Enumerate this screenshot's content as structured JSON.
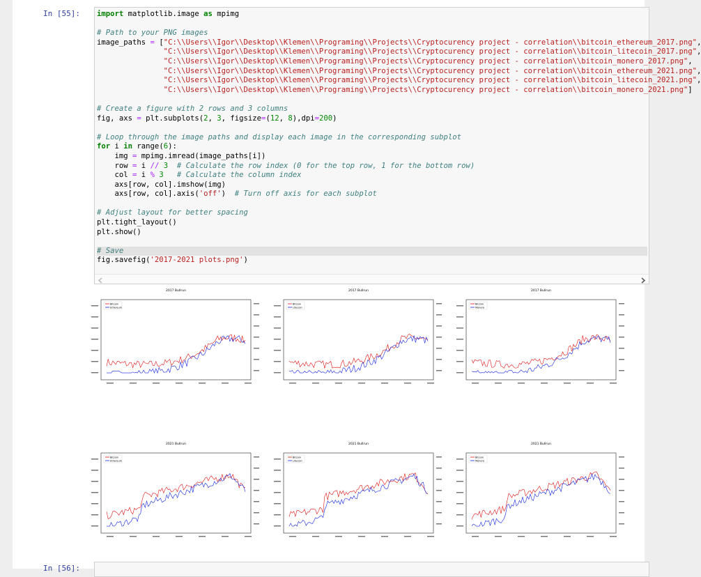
{
  "cell": {
    "prompt": "In [55]:",
    "blocks": [
      [
        "import matplotlib.image as mpimg"
      ],
      [
        "# Path to your PNG images",
        "image_paths = [\"C:\\\\Users\\\\Igor\\\\Desktop\\\\Klemen\\\\Programing\\\\Projects\\\\Cryptocurency project - correlation\\\\bitcoin_ethereum_2017.png\",",
        "               \"C:\\\\Users\\\\Igor\\\\Desktop\\\\Klemen\\\\Programing\\\\Projects\\\\Cryptocurency project - correlation\\\\bitcoin_litecoin_2017.png\",",
        "               \"C:\\\\Users\\\\Igor\\\\Desktop\\\\Klemen\\\\Programing\\\\Projects\\\\Cryptocurency project - correlation\\\\bitcoin_monero_2017.png\",",
        "               \"C:\\\\Users\\\\Igor\\\\Desktop\\\\Klemen\\\\Programing\\\\Projects\\\\Cryptocurency project - correlation\\\\bitcoin_ethereum_2021.png\",",
        "               \"C:\\\\Users\\\\Igor\\\\Desktop\\\\Klemen\\\\Programing\\\\Projects\\\\Cryptocurency project - correlation\\\\bitcoin_litecoin_2021.png\",",
        "               \"C:\\\\Users\\\\Igor\\\\Desktop\\\\Klemen\\\\Programing\\\\Projects\\\\Cryptocurency project - correlation\\\\bitcoin_monero_2021.png\"]"
      ],
      [
        "# Create a figure with 2 rows and 3 columns",
        "fig, axs = plt.subplots(2, 3, figsize=(12, 8),dpi=200)"
      ],
      [
        "# Loop through the image paths and display each image in the corresponding subplot",
        "for i in range(6):",
        "    img = mpimg.imread(image_paths[i])",
        "    row = i // 3  # Calculate the row index (0 for the top row, 1 for the bottom row)",
        "    col = i % 3   # Calculate the column index",
        "    axs[row, col].imshow(img)",
        "    axs[row, col].axis('off')  # Turn off axis for each subplot"
      ],
      [
        "# Adjust layout for better spacing",
        "plt.tight_layout()",
        "plt.show()"
      ],
      [
        "# Save",
        "fig.savefig('2017-2021 plots.png')"
      ]
    ]
  },
  "output": {
    "plots": [
      {
        "title": "2017 Bullrun",
        "legend": [
          "Bitcoin",
          "Ethereum"
        ]
      },
      {
        "title": "2017 Bullrun",
        "legend": [
          "Bitcoin",
          "Litecoin"
        ]
      },
      {
        "title": "2017 Bullrun",
        "legend": [
          "Bitcoin",
          "Monero"
        ]
      },
      {
        "title": "2021 Bullrun",
        "legend": [
          "Bitcoin",
          "Ethereum"
        ]
      },
      {
        "title": "2021 Bullrun",
        "legend": [
          "Bitcoin",
          "Litecoin"
        ]
      },
      {
        "title": "2021 Bullrun",
        "legend": [
          "Bitcoin",
          "Monero"
        ]
      }
    ]
  },
  "next_cell": {
    "prompt": "In [56]:"
  }
}
